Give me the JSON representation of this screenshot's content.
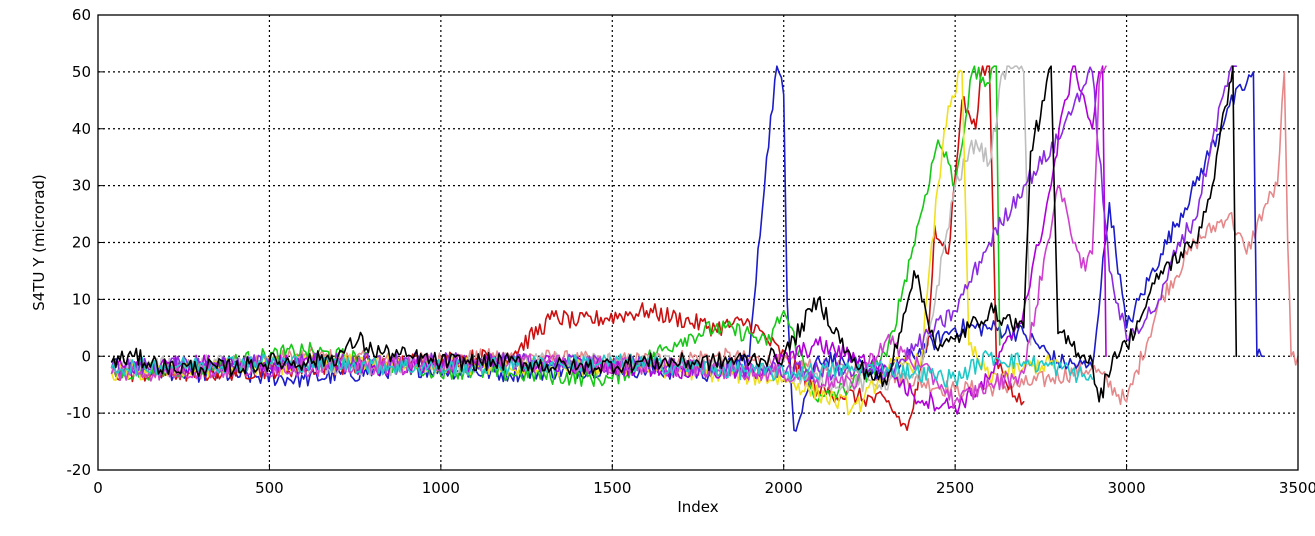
{
  "chart_data": {
    "type": "line",
    "title": "",
    "xlabel": "Index",
    "ylabel": "S4TU Y (microrad)",
    "xlim": [
      0,
      3500
    ],
    "ylim": [
      -20,
      60
    ],
    "xticks": [
      0,
      500,
      1000,
      1500,
      2000,
      2500,
      3000,
      3500
    ],
    "yticks": [
      -20,
      -10,
      0,
      10,
      20,
      30,
      40,
      50,
      60
    ],
    "xtick_labels": [
      "0",
      "500",
      "1000",
      "1500",
      "2000",
      "2500",
      "3000",
      "3500"
    ],
    "ytick_labels": [
      "-20",
      "-10",
      "0",
      "10",
      "20",
      "30",
      "40",
      "50",
      "60"
    ],
    "grid": true,
    "series": [
      {
        "color": "#e6888a",
        "x": [
          40,
          300,
          600,
          900,
          1200,
          1500,
          1800,
          2100,
          2300,
          2500,
          2700,
          2900,
          3000,
          3100,
          3200,
          3300,
          3350,
          3400,
          3440,
          3460,
          3470,
          3480,
          3500
        ],
        "y": [
          -3,
          -2,
          0,
          -1,
          0,
          -1,
          0,
          -2,
          -3,
          -6,
          -5,
          -2,
          -8,
          10,
          20,
          25,
          18,
          26,
          30,
          50,
          20,
          0,
          0
        ]
      },
      {
        "color": "#1c1cc8",
        "x": [
          40,
          300,
          600,
          900,
          1200,
          1500,
          1800,
          1900,
          1950,
          1980,
          2000,
          2010,
          2030,
          2100,
          2300,
          2500,
          2600,
          2700,
          2800,
          2900,
          2950,
          3000,
          3100,
          3200,
          3300,
          3350,
          3370,
          3380,
          3400
        ],
        "y": [
          -2,
          -3,
          -4,
          -2,
          -3,
          -2,
          -3,
          0,
          35,
          51,
          46,
          10,
          -13,
          0,
          -3,
          5,
          5,
          4,
          -1,
          -2,
          27,
          5,
          18,
          30,
          44,
          48,
          50,
          0,
          0
        ]
      },
      {
        "color": "#cc1010",
        "x": [
          40,
          300,
          600,
          900,
          1200,
          1330,
          1400,
          1600,
          1800,
          1900,
          2100,
          2300,
          2360,
          2420,
          2440,
          2480,
          2520,
          2560,
          2580,
          2600,
          2620,
          2680,
          2700
        ],
        "y": [
          -3,
          -3,
          -2,
          -1,
          0,
          7,
          6,
          8,
          5,
          6,
          -6,
          -8,
          -13,
          2,
          23,
          18,
          45,
          40,
          51,
          51,
          0,
          -8,
          -8
        ]
      },
      {
        "color": "#18c818",
        "x": [
          40,
          300,
          600,
          900,
          1200,
          1500,
          1700,
          1800,
          1900,
          1950,
          2000,
          2100,
          2200,
          2300,
          2400,
          2450,
          2480,
          2500,
          2550,
          2600,
          2620,
          2630
        ],
        "y": [
          -3,
          -2,
          1,
          -2,
          -3,
          -4,
          3,
          5,
          4,
          2,
          8,
          -8,
          -5,
          0,
          25,
          38,
          34,
          30,
          50,
          48,
          51,
          2
        ]
      },
      {
        "color": "#bebebe",
        "x": [
          40,
          400,
          800,
          1200,
          1600,
          2000,
          2200,
          2400,
          2500,
          2560,
          2600,
          2640,
          2680,
          2700,
          2720
        ],
        "y": [
          -2,
          -1,
          -2,
          -1,
          -1,
          -3,
          -5,
          -4,
          30,
          38,
          34,
          50,
          52,
          50,
          2
        ]
      },
      {
        "color": "#f0e020",
        "x": [
          40,
          400,
          800,
          1200,
          1600,
          2000,
          2200,
          2230,
          2300,
          2400,
          2450,
          2480,
          2520,
          2540,
          2600,
          2700,
          2800
        ],
        "y": [
          -3,
          -2,
          -1,
          -2,
          -2,
          -4,
          -9,
          -8,
          -2,
          -1,
          30,
          44,
          50,
          2,
          -4,
          -2,
          -1
        ]
      },
      {
        "color": "#b000d8",
        "x": [
          40,
          400,
          800,
          1200,
          1600,
          1900,
          2100,
          2300,
          2380,
          2500,
          2600,
          2700,
          2780,
          2820,
          2850,
          2900,
          2920,
          2930,
          2940
        ],
        "y": [
          -2,
          -1,
          -2,
          -1,
          -2,
          -3,
          2,
          -2,
          -7,
          -9,
          -4,
          8,
          30,
          45,
          51,
          40,
          50,
          51,
          0
        ]
      },
      {
        "color": "#8a2be2",
        "x": [
          40,
          600,
          1200,
          1800,
          2300,
          2500,
          2600,
          2700,
          2800,
          2850,
          2900,
          2950,
          3000,
          3100,
          3150,
          3200,
          3250,
          3300,
          3320
        ],
        "y": [
          -2,
          -1,
          -1,
          -2,
          -3,
          8,
          20,
          30,
          38,
          45,
          50,
          15,
          3,
          10,
          20,
          24,
          38,
          50,
          51
        ]
      },
      {
        "color": "#d040d0",
        "x": [
          40,
          600,
          1200,
          1700,
          2000,
          2200,
          2300,
          2400,
          2460,
          2500,
          2600,
          2700,
          2800,
          2850,
          2880,
          2900,
          2920,
          2940
        ],
        "y": [
          -3,
          -2,
          -1,
          -2,
          -3,
          -5,
          3,
          -2,
          -5,
          -8,
          -5,
          -3,
          30,
          20,
          15,
          18,
          48,
          51
        ]
      },
      {
        "color": "#20c8c8",
        "x": [
          40,
          500,
          1000,
          1500,
          2000,
          2300,
          2500,
          2600,
          2700,
          2800,
          2900
        ],
        "y": [
          -2,
          -1,
          -2,
          -1,
          -3,
          -2,
          -4,
          0,
          -1,
          -2,
          -4
        ]
      },
      {
        "color": "#000000",
        "x": [
          40,
          100,
          200,
          300,
          400,
          500,
          600,
          700,
          760,
          800,
          900,
          1000,
          1200,
          1400,
          1600,
          1800,
          2000,
          2100,
          2200,
          2300,
          2380,
          2450,
          2500,
          2600,
          2700,
          2720,
          2760,
          2780,
          2800,
          2900,
          2920,
          2960,
          3000,
          3050,
          3100,
          3200,
          3250,
          3300,
          3310,
          3320
        ],
        "y": [
          -1,
          0,
          -2,
          -2,
          -2,
          -1,
          -1,
          0,
          3,
          1,
          0,
          -1,
          -1,
          -2,
          -1,
          -1,
          0,
          10,
          -1,
          -5,
          15,
          1,
          3,
          8,
          5,
          36,
          45,
          51,
          4,
          -1,
          -8,
          0,
          2,
          8,
          15,
          20,
          30,
          48,
          51,
          0
        ]
      }
    ]
  }
}
